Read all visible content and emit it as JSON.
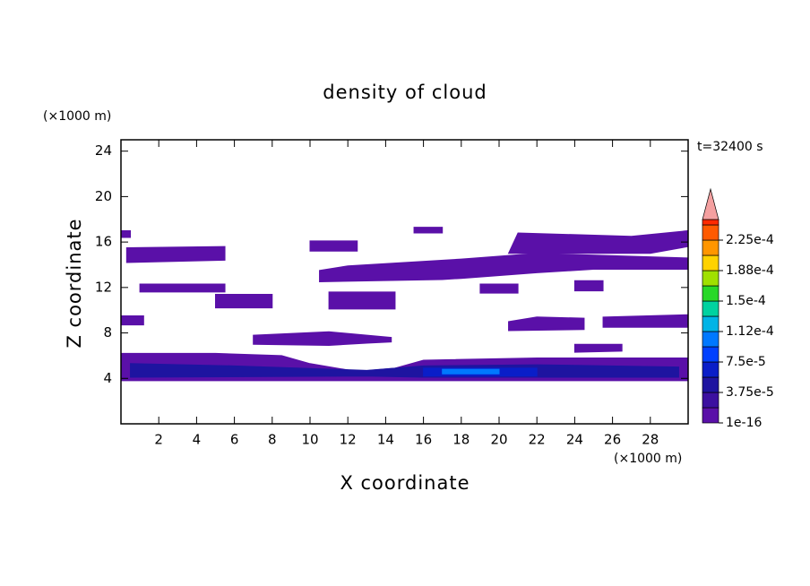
{
  "chart_data": {
    "type": "contour",
    "title": "density of cloud",
    "x_label": "X coordinate",
    "y_label": "Z coordinate",
    "x_unit": "(×1000 m)",
    "y_unit": "(×1000 m)",
    "annotation": "t=32400 s",
    "xlim": [
      0,
      30
    ],
    "ylim": [
      0,
      25
    ],
    "xticks": [
      2,
      4,
      6,
      8,
      10,
      12,
      14,
      16,
      18,
      20,
      22,
      24,
      26,
      28
    ],
    "yticks": [
      4,
      8,
      12,
      16,
      20,
      24
    ],
    "levels": [
      1e-16,
      {
        "value": 3.75e-05,
        "label": "3.75e-5"
      },
      {
        "value": 7.5e-05,
        "label": "7.5e-5"
      },
      {
        "value": 0.000112,
        "label": "1.12e-4"
      },
      {
        "value": 0.00015,
        "label": "1.5e-4"
      },
      {
        "value": 0.000188,
        "label": "1.88e-4"
      },
      {
        "value": 0.000225,
        "label": "2.25e-4"
      }
    ],
    "colors": [
      "#5a10a8",
      "#3c10a0",
      "#1e14a0",
      "#0a1ec8",
      "#0040ff",
      "#0078ff",
      "#00b4e6",
      "#00d2a0",
      "#28d828",
      "#a0e000",
      "#ffd200",
      "#ff9600",
      "#ff5a00",
      "#ff2a00"
    ],
    "extend_color": "#f4a0a0",
    "regions": [
      {
        "x": [
          0,
          30,
          30,
          22,
          16,
          14.5,
          12.5,
          10,
          8.5,
          5,
          0
        ],
        "z": [
          3.8,
          3.8,
          5.8,
          5.8,
          5.6,
          4.9,
          4.6,
          5.3,
          6.0,
          6.2,
          6.2
        ],
        "level": 0
      },
      {
        "x": [
          0.5,
          13,
          16,
          29.5,
          29.5,
          22,
          16,
          13,
          6,
          0.5
        ],
        "z": [
          4.1,
          4.2,
          4.1,
          4.1,
          5.0,
          5.2,
          5.1,
          4.7,
          5.1,
          5.3
        ],
        "level": 2
      },
      {
        "x": [
          16,
          22,
          22,
          16
        ],
        "z": [
          4.2,
          4.2,
          4.9,
          4.9
        ],
        "level": 3
      },
      {
        "x": [
          17,
          20,
          20,
          17
        ],
        "z": [
          4.4,
          4.4,
          4.8,
          4.8
        ],
        "level": 5
      },
      {
        "x": [
          7,
          11,
          13,
          14.3,
          14.3,
          11,
          7
        ],
        "z": [
          7,
          6.9,
          7.1,
          7.2,
          7.6,
          8.1,
          7.8
        ],
        "level": 0
      },
      {
        "x": [
          0,
          1.2,
          1.2,
          0
        ],
        "z": [
          8.7,
          8.7,
          9.5,
          9.5
        ],
        "level": 0
      },
      {
        "x": [
          20.5,
          24.5,
          24.5,
          22,
          20.5
        ],
        "z": [
          8.2,
          8.3,
          9.3,
          9.4,
          9.0
        ],
        "level": 0
      },
      {
        "x": [
          25.5,
          30,
          30,
          25.5
        ],
        "z": [
          8.5,
          8.5,
          9.6,
          9.4
        ],
        "level": 0
      },
      {
        "x": [
          24,
          26.5,
          26.5,
          24
        ],
        "z": [
          6.3,
          6.4,
          7.0,
          7.0
        ],
        "level": 0
      },
      {
        "x": [
          5,
          8,
          8,
          5
        ],
        "z": [
          10.2,
          10.2,
          11.4,
          11.4
        ],
        "level": 0
      },
      {
        "x": [
          11,
          14.5,
          14.5,
          11
        ],
        "z": [
          10.1,
          10.1,
          11.6,
          11.6
        ],
        "level": 0
      },
      {
        "x": [
          1,
          5.5,
          5.5,
          1
        ],
        "z": [
          11.6,
          11.6,
          12.3,
          12.3
        ],
        "level": 0
      },
      {
        "x": [
          19,
          21,
          21,
          19
        ],
        "z": [
          11.5,
          11.5,
          12.3,
          12.3
        ],
        "level": 0
      },
      {
        "x": [
          24,
          25.5,
          25.5,
          24
        ],
        "z": [
          11.7,
          11.7,
          12.6,
          12.6
        ],
        "level": 0
      },
      {
        "x": [
          10.5,
          17,
          18,
          22,
          25,
          30,
          30,
          22,
          18,
          12,
          10.5
        ],
        "z": [
          12.5,
          12.7,
          12.8,
          13.3,
          13.6,
          13.6,
          14.6,
          15,
          14.5,
          13.9,
          13.5
        ],
        "level": 0
      },
      {
        "x": [
          0.3,
          5.5,
          5.5,
          0.3
        ],
        "z": [
          14.2,
          14.4,
          15.6,
          15.5
        ],
        "level": 0
      },
      {
        "x": [
          20.5,
          28,
          30,
          30,
          27,
          21
        ],
        "z": [
          15,
          15,
          15.6,
          17,
          16.5,
          16.8
        ],
        "level": 0
      },
      {
        "x": [
          15.5,
          17,
          17,
          15.5
        ],
        "z": [
          16.8,
          16.8,
          17.3,
          17.3
        ],
        "level": 0
      },
      {
        "x": [
          10,
          12.5,
          12.5,
          10
        ],
        "z": [
          15.2,
          15.2,
          16.1,
          16.1
        ],
        "level": 0
      },
      {
        "x": [
          0,
          0.5,
          0.5,
          0
        ],
        "z": [
          16.4,
          16.4,
          17,
          17
        ],
        "level": 0
      }
    ]
  }
}
